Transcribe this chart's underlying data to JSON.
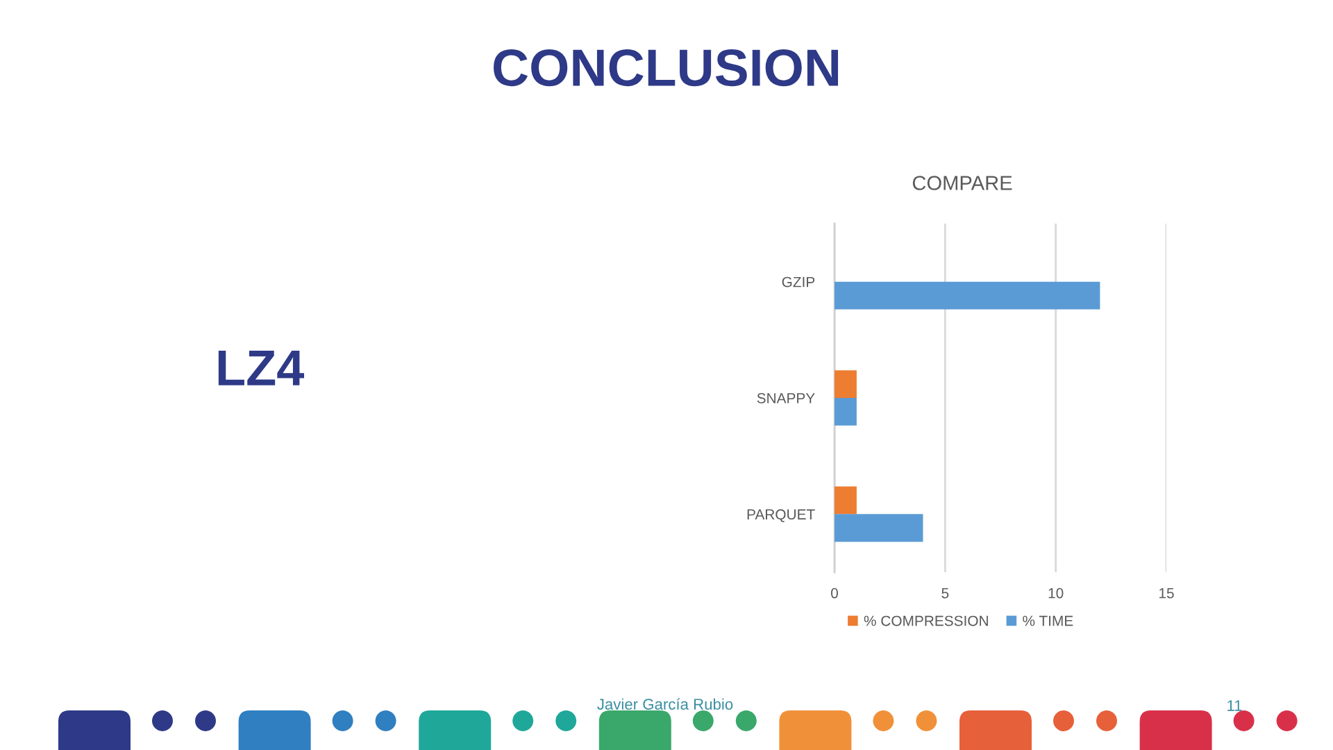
{
  "chart_data": {
    "type": "bar",
    "orientation": "horizontal",
    "title": "CONCLUSION",
    "subtitle": "COMPARE",
    "categories": [
      "GZIP",
      "SNAPPY",
      "PARQUET"
    ],
    "series": [
      {
        "name": "% COMPRESSION",
        "color": "#ed7d31",
        "values": [
          null,
          1,
          1
        ]
      },
      {
        "name": "% TIME",
        "color": "#5b9bd5",
        "values": [
          12,
          1,
          4
        ]
      }
    ],
    "xlim": [
      0,
      15
    ],
    "xticks": [
      0,
      5,
      10,
      15
    ],
    "grid": "x",
    "legend": "bottom",
    "annotations": [
      "LZ4",
      "Javier García Rubio",
      "11"
    ]
  }
}
